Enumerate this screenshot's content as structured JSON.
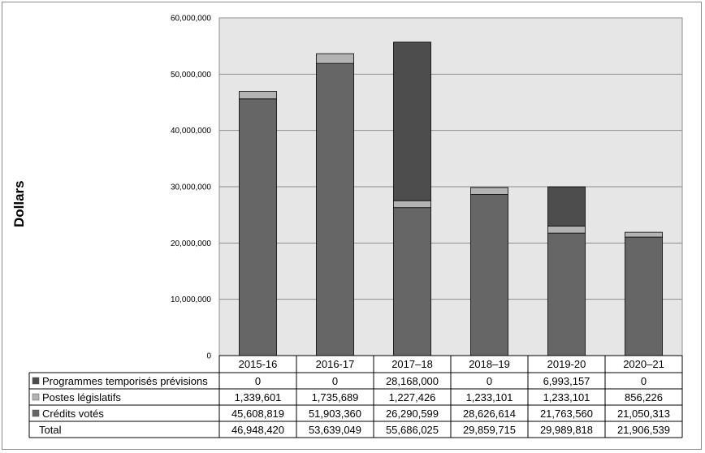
{
  "chart_data": {
    "type": "bar",
    "stacked": true,
    "ylabel": "Dollars",
    "ylim": [
      0,
      60000000
    ],
    "yticks": [
      "0",
      "10,000,000",
      "20,000,000",
      "30,000,000",
      "40,000,000",
      "50,000,000",
      "60,000,000"
    ],
    "ytick_values": [
      0,
      10000000,
      20000000,
      30000000,
      40000000,
      50000000,
      60000000
    ],
    "categories": [
      "2015-16",
      "2016-17",
      "2017–18",
      "2018–19",
      "2019-20",
      "2020–21"
    ],
    "series": [
      {
        "name": "Programmes temporisés prévisions",
        "color": "#4d4d4d",
        "values": [
          0,
          0,
          28168000,
          0,
          6993157,
          0
        ],
        "labels": [
          "0",
          "0",
          "28,168,000",
          "0",
          "6,993,157",
          "0"
        ]
      },
      {
        "name": "Postes législatifs",
        "color": "#b3b3b3",
        "values": [
          1339601,
          1735689,
          1227426,
          1233101,
          1233101,
          856226
        ],
        "labels": [
          "1,339,601",
          "1,735,689",
          "1,227,426",
          "1,233,101",
          "1,233,101",
          "856,226"
        ]
      },
      {
        "name": "Crédits votés",
        "color": "#666666",
        "values": [
          45608819,
          51903360,
          26290599,
          28626614,
          21763560,
          21050313
        ],
        "labels": [
          "45,608,819",
          "51,903,360",
          "26,290,599",
          "28,626,614",
          "21,763,560",
          "21,050,313"
        ]
      }
    ],
    "total_label": "Total",
    "totals": [
      "46,948,420",
      "53,639,049",
      "55,686,025",
      "29,859,715",
      "29,989,818",
      "21,906,539"
    ],
    "plot_background": "#e6e6e6",
    "grid": true
  }
}
